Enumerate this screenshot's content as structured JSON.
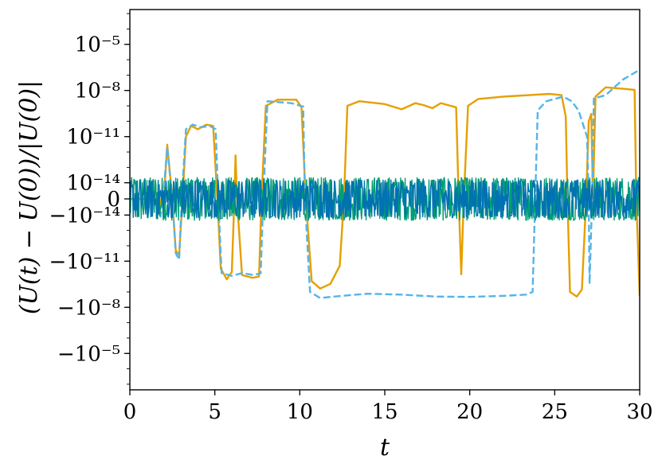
{
  "chart_data": {
    "type": "line",
    "title": "",
    "xlabel": "t",
    "ylabel": "(U(t) − U(0))/|U(0)|",
    "xlim": [
      0,
      30
    ],
    "yscale": "symlog",
    "ytick_labels": [
      "10⁻⁵",
      "10⁻⁸",
      "10⁻¹¹",
      "10⁻¹⁴",
      "0",
      "−10⁻¹⁴",
      "−10⁻¹¹",
      "−10⁻⁸",
      "−10⁻⁵"
    ],
    "xtick_labels": [
      "0",
      "5",
      "10",
      "15",
      "20",
      "25",
      "30"
    ],
    "xticks": [
      0,
      5,
      10,
      15,
      20,
      25,
      30
    ],
    "legend": "none",
    "grid": false,
    "series": [
      {
        "style": "solid",
        "color": "#e69f00",
        "points": [
          [
            0,
            0
          ],
          [
            1.4,
            0
          ],
          [
            1.55,
            -3.5e-15
          ],
          [
            1.75,
            -1e-14
          ],
          [
            1.85,
            0
          ],
          [
            2.0,
            0
          ],
          [
            2.2,
            3e-12
          ],
          [
            2.5,
            0
          ],
          [
            2.7,
            -2e-12
          ],
          [
            2.9,
            -4e-12
          ],
          [
            3.1,
            0
          ],
          [
            3.3,
            1e-11
          ],
          [
            3.6,
            5e-11
          ],
          [
            4.0,
            3e-11
          ],
          [
            4.5,
            6e-11
          ],
          [
            4.9,
            5e-11
          ],
          [
            5.15,
            0
          ],
          [
            5.35,
            -3e-11
          ],
          [
            5.7,
            -1.5e-10
          ],
          [
            6.0,
            -5e-11
          ],
          [
            6.15,
            0
          ],
          [
            6.22,
            6e-13
          ],
          [
            6.3,
            0
          ],
          [
            6.6,
            -8e-11
          ],
          [
            7.2,
            -1.2e-10
          ],
          [
            7.6,
            -1e-10
          ],
          [
            7.75,
            0
          ],
          [
            8.0,
            1e-09
          ],
          [
            8.7,
            2.5e-09
          ],
          [
            9.8,
            2.5e-09
          ],
          [
            10.1,
            8e-10
          ],
          [
            10.35,
            0
          ],
          [
            10.7,
            -2e-10
          ],
          [
            11.2,
            -6e-10
          ],
          [
            11.8,
            -3e-10
          ],
          [
            12.35,
            -2e-11
          ],
          [
            12.6,
            0
          ],
          [
            12.8,
            1e-09
          ],
          [
            13.5,
            2e-09
          ],
          [
            15.0,
            1.3e-09
          ],
          [
            16.0,
            6e-10
          ],
          [
            16.8,
            1.5e-09
          ],
          [
            17.3,
            1.1e-09
          ],
          [
            17.8,
            7e-10
          ],
          [
            18.3,
            1.5e-09
          ],
          [
            19.2,
            8e-10
          ],
          [
            19.35,
            0
          ],
          [
            19.5,
            -7e-11
          ],
          [
            19.65,
            0
          ],
          [
            19.9,
            1e-09
          ],
          [
            20.5,
            2.8e-09
          ],
          [
            22.0,
            4e-09
          ],
          [
            23.5,
            5e-09
          ],
          [
            24.7,
            6e-09
          ],
          [
            25.4,
            5e-09
          ],
          [
            25.65,
            2e-10
          ],
          [
            25.75,
            0
          ],
          [
            25.9,
            -1e-09
          ],
          [
            26.3,
            -2e-09
          ],
          [
            26.6,
            -7e-10
          ],
          [
            26.85,
            0
          ],
          [
            27.0,
            1e-10
          ],
          [
            27.15,
            3e-10
          ],
          [
            27.25,
            0
          ],
          [
            27.4,
            4e-09
          ],
          [
            28.0,
            1.6e-08
          ],
          [
            29.0,
            1.3e-08
          ],
          [
            29.7,
            1.1e-08
          ],
          [
            29.8,
            0
          ],
          [
            30,
            -1.8e-09
          ]
        ]
      },
      {
        "style": "dashed",
        "color": "#56b4e9",
        "points": [
          [
            0,
            0
          ],
          [
            1.4,
            0
          ],
          [
            1.6,
            -3e-15
          ],
          [
            1.8,
            -1.3e-14
          ],
          [
            1.95,
            0
          ],
          [
            2.2,
            2e-12
          ],
          [
            2.5,
            0
          ],
          [
            2.7,
            -3e-12
          ],
          [
            2.9,
            -8e-12
          ],
          [
            3.05,
            0
          ],
          [
            3.3,
            3e-11
          ],
          [
            3.7,
            6e-11
          ],
          [
            4.2,
            4e-11
          ],
          [
            4.7,
            5e-11
          ],
          [
            5.05,
            3e-11
          ],
          [
            5.2,
            0
          ],
          [
            5.4,
            -6e-11
          ],
          [
            6.0,
            -9e-11
          ],
          [
            6.6,
            -6e-11
          ],
          [
            7.3,
            -8e-11
          ],
          [
            7.7,
            -6e-11
          ],
          [
            7.85,
            0
          ],
          [
            8.1,
            2e-09
          ],
          [
            9.5,
            1.5e-09
          ],
          [
            10.2,
            9e-10
          ],
          [
            10.3,
            0
          ],
          [
            10.6,
            -1e-09
          ],
          [
            11.2,
            -2.5e-09
          ],
          [
            12.0,
            -2e-09
          ],
          [
            14.0,
            -1.3e-09
          ],
          [
            16.0,
            -1.5e-09
          ],
          [
            18.0,
            -2e-09
          ],
          [
            20.0,
            -2.1e-09
          ],
          [
            22.0,
            -1.8e-09
          ],
          [
            23.3,
            -1.5e-09
          ],
          [
            23.7,
            -1e-09
          ],
          [
            23.85,
            0
          ],
          [
            24.0,
            5e-10
          ],
          [
            24.5,
            2e-09
          ],
          [
            25.5,
            4e-09
          ],
          [
            26.0,
            2e-09
          ],
          [
            26.4,
            5e-10
          ],
          [
            26.9,
            1e-11
          ],
          [
            27.0,
            0
          ],
          [
            27.05,
            -3e-10
          ],
          [
            27.2,
            0
          ],
          [
            27.3,
            3e-09
          ],
          [
            28.0,
            5e-09
          ],
          [
            29.0,
            5e-08
          ],
          [
            30,
            2.2e-07
          ]
        ]
      },
      {
        "style": "noise",
        "color": "#009e73",
        "amplitude": 2.2e-14,
        "points": [
          [
            0,
            0
          ],
          [
            30,
            0
          ]
        ]
      },
      {
        "style": "noise",
        "color": "#0072b2",
        "amplitude": 1.5e-14,
        "points": [
          [
            0,
            0
          ],
          [
            30,
            0
          ]
        ]
      }
    ]
  }
}
